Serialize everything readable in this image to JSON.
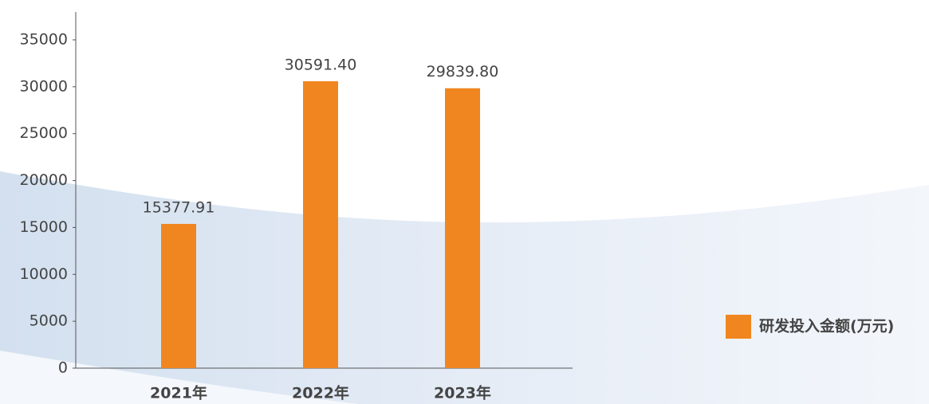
{
  "chart_data": {
    "type": "bar",
    "categories": [
      "2021年",
      "2022年",
      "2023年"
    ],
    "series": [
      {
        "name": "研发投入金额(万元)",
        "color": "#f0861f",
        "values": [
          15377.91,
          30591.4,
          29839.8
        ],
        "value_labels": [
          "15377.91",
          "30591.40",
          "29839.80"
        ]
      }
    ],
    "ylim": [
      0,
      35000
    ],
    "yticks": [
      0,
      5000,
      10000,
      15000,
      20000,
      25000,
      30000,
      35000
    ],
    "legend": "right"
  }
}
